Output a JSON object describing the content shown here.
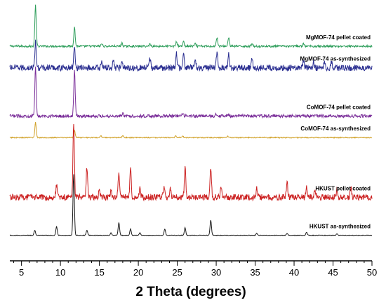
{
  "chart_data": {
    "type": "line",
    "title": "",
    "xlabel": "2 Theta (degrees)",
    "ylabel": "",
    "xlim": [
      3.5,
      50
    ],
    "x_ticks": [
      5,
      10,
      15,
      20,
      25,
      30,
      35,
      40,
      45,
      50
    ],
    "grid": false,
    "legend": "labels placed at right end of each trace",
    "series": [
      {
        "name": "MgMOF-74 pellet coated",
        "color": "#2e9e5b",
        "baseline": 0.84,
        "noise": 0.004,
        "peaks": [
          [
            6.8,
            0.16
          ],
          [
            11.8,
            0.075
          ],
          [
            15.3,
            0.01
          ],
          [
            17.9,
            0.012
          ],
          [
            21.5,
            0.01
          ],
          [
            24.9,
            0.018
          ],
          [
            25.8,
            0.018
          ],
          [
            27.3,
            0.01
          ],
          [
            30.1,
            0.035
          ],
          [
            31.6,
            0.035
          ],
          [
            34.6,
            0.012
          ],
          [
            41.2,
            0.01
          ]
        ]
      },
      {
        "name": "MgMOF-74 as-synthesized",
        "color": "#2b2f91",
        "baseline": 0.755,
        "noise": 0.012,
        "peaks": [
          [
            6.8,
            0.1
          ],
          [
            11.8,
            0.09
          ],
          [
            15.3,
            0.025
          ],
          [
            16.8,
            0.03
          ],
          [
            17.9,
            0.035
          ],
          [
            21.5,
            0.035
          ],
          [
            24.9,
            0.055
          ],
          [
            25.8,
            0.05
          ],
          [
            27.3,
            0.035
          ],
          [
            30.1,
            0.06
          ],
          [
            31.6,
            0.06
          ],
          [
            34.6,
            0.04
          ],
          [
            41.2,
            0.03
          ],
          [
            42.5,
            0.025
          ],
          [
            43.9,
            0.025
          ],
          [
            44.8,
            0.025
          ]
        ]
      },
      {
        "name": "CoMOF-74 pellet coated",
        "color": "#7b2f9a",
        "baseline": 0.565,
        "noise": 0.006,
        "peaks": [
          [
            6.8,
            0.19
          ],
          [
            11.8,
            0.18
          ],
          [
            18.0,
            0.01
          ],
          [
            25.7,
            0.008
          ],
          [
            30.0,
            0.01
          ],
          [
            31.5,
            0.008
          ]
        ]
      },
      {
        "name": "CoMOF-74 as-synthesized",
        "color": "#d1a22a",
        "baseline": 0.48,
        "noise": 0.002,
        "peaks": [
          [
            6.8,
            0.06
          ],
          [
            11.8,
            0.03
          ],
          [
            15.2,
            0.006
          ],
          [
            18.0,
            0.008
          ],
          [
            24.8,
            0.006
          ],
          [
            25.7,
            0.006
          ],
          [
            31.5,
            0.005
          ]
        ]
      },
      {
        "name": "HKUST pellet coated",
        "color": "#cc2222",
        "baseline": 0.245,
        "noise": 0.012,
        "peaks": [
          [
            9.5,
            0.05
          ],
          [
            11.7,
            0.3
          ],
          [
            13.4,
            0.12
          ],
          [
            15.0,
            0.03
          ],
          [
            16.5,
            0.025
          ],
          [
            17.5,
            0.1
          ],
          [
            19.0,
            0.11
          ],
          [
            20.2,
            0.04
          ],
          [
            23.3,
            0.04
          ],
          [
            24.1,
            0.03
          ],
          [
            26.0,
            0.12
          ],
          [
            29.3,
            0.12
          ],
          [
            30.6,
            0.04
          ],
          [
            35.2,
            0.04
          ],
          [
            39.1,
            0.06
          ],
          [
            41.6,
            0.04
          ],
          [
            42.7,
            0.03
          ],
          [
            45.5,
            0.03
          ],
          [
            47.3,
            0.04
          ]
        ]
      },
      {
        "name": "HKUST as-synthesized",
        "color": "#1a1a1a",
        "baseline": 0.095,
        "noise": 0.001,
        "peaks": [
          [
            6.7,
            0.02
          ],
          [
            9.5,
            0.035
          ],
          [
            11.7,
            0.24
          ],
          [
            13.4,
            0.02
          ],
          [
            16.5,
            0.01
          ],
          [
            17.5,
            0.05
          ],
          [
            19.0,
            0.025
          ],
          [
            20.2,
            0.01
          ],
          [
            23.4,
            0.025
          ],
          [
            26.0,
            0.03
          ],
          [
            29.3,
            0.06
          ],
          [
            35.2,
            0.008
          ],
          [
            39.1,
            0.008
          ],
          [
            41.6,
            0.012
          ],
          [
            45.5,
            0.006
          ]
        ]
      }
    ]
  }
}
